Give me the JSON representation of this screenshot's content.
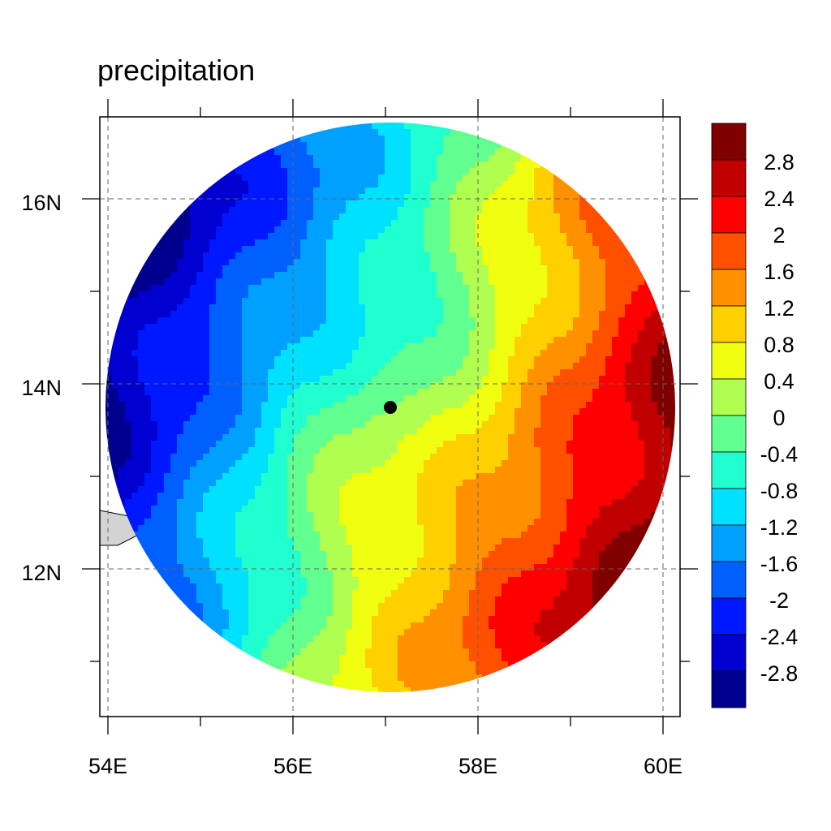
{
  "title": "precipitation",
  "x_axis": {
    "labels": [
      "54E",
      "56E",
      "58E",
      "60E"
    ],
    "values": [
      54,
      56,
      58,
      60
    ],
    "range": [
      53.9,
      60.2
    ]
  },
  "y_axis": {
    "labels": [
      "12N",
      "14N",
      "16N"
    ],
    "values": [
      12,
      14,
      16
    ],
    "range": [
      10.5,
      16.9
    ]
  },
  "colorbar": {
    "labels": [
      "2.8",
      "2.4",
      "2",
      "1.6",
      "1.2",
      "0.8",
      "0.4",
      "0",
      "-0.4",
      "-0.8",
      "-1.2",
      "-1.6",
      "-2",
      "-2.4",
      "-2.8"
    ],
    "colors": [
      "#800000",
      "#c00000",
      "#ff0000",
      "#ff5000",
      "#ff9000",
      "#ffd000",
      "#f0ff10",
      "#b0ff50",
      "#60ff90",
      "#20ffd0",
      "#00e0ff",
      "#00a0ff",
      "#0060ff",
      "#0018ff",
      "#0000d0",
      "#00008f"
    ]
  },
  "chart_data": {
    "type": "contour-map",
    "variable": "precipitation",
    "center_marker": {
      "lon": 57.05,
      "lat": 13.75
    },
    "domain": {
      "shape": "circle",
      "center_lon": 57.0,
      "center_lat": 13.75,
      "radius_deg": 3.08
    },
    "levels": [
      -2.8,
      -2.4,
      -2.0,
      -1.6,
      -1.2,
      -0.8,
      -0.4,
      0,
      0.4,
      0.8,
      1.2,
      1.6,
      2.0,
      2.4,
      2.8
    ],
    "field_range": [
      -3.2,
      3.2
    ],
    "grid": true
  },
  "colors": {
    "land": "#d3d3d3",
    "grid": "#666666",
    "frame": "#000000"
  }
}
